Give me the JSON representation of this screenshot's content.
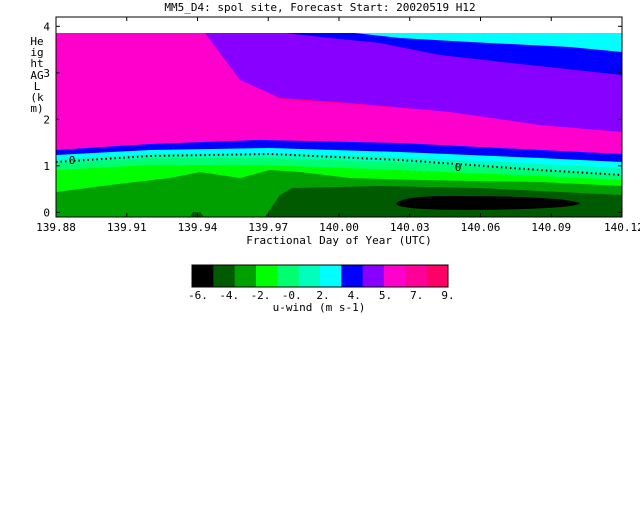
{
  "title": "MM5_D4: spol site,  Forecast Start: 20020519 H12",
  "chart_data": {
    "type": "heatmap",
    "x_tick_labels": [
      "139.88",
      "139.91",
      "139.94",
      "139.97",
      "140.00",
      "140.03",
      "140.06",
      "140.09",
      "140.12"
    ],
    "x_ticks": [
      139.88,
      139.91,
      139.94,
      139.97,
      140.0,
      140.03,
      140.06,
      140.09,
      140.12
    ],
    "xlim": [
      139.88,
      140.12
    ],
    "xlabel": "Fractional Day of Year (UTC)",
    "y_tick_labels": [
      "0",
      "1",
      "2",
      "3",
      "4"
    ],
    "y_ticks": [
      0,
      1,
      2,
      3,
      4
    ],
    "ylim": [
      -0.1,
      4.2
    ],
    "ylabel": "Height AGL (km)",
    "zero_contour_label": "0",
    "colorbar": {
      "label": "u-wind (m s-1)",
      "tick_labels": [
        "-6.",
        "-4.",
        "-2.",
        "-0.",
        "2.",
        "4.",
        "5.",
        "7.",
        "9."
      ],
      "levels": [
        -6,
        -4,
        -2,
        0,
        2,
        4,
        5,
        7,
        9
      ],
      "colors": [
        "#000000",
        "#005a00",
        "#00a000",
        "#00ff00",
        "#00ff70",
        "#00ffbb",
        "#00ffff",
        "#0000ff",
        "#8800ff",
        "#ff00cc",
        "#ff0099",
        "#ff0066"
      ]
    },
    "bands": [
      {
        "level": "-6 to -4",
        "color": "#000000"
      },
      {
        "level": "-4 to -2",
        "color": "#005a00"
      },
      {
        "level": "-2 to -0",
        "color": "#00a000"
      },
      {
        "level": "-0 to 2",
        "color": "#00ff00"
      },
      {
        "level": "2 to 4",
        "color": "#00ff70"
      },
      {
        "level": "4 to 5",
        "color": "#00ffff"
      },
      {
        "level": "5 to 7",
        "color": "#0000ff"
      },
      {
        "level": "7 to 9",
        "color": "#8800ff"
      },
      {
        "level": "> 7",
        "color": "#ff00cc"
      },
      {
        "level": "> 9",
        "color": "#ff0099"
      }
    ]
  }
}
